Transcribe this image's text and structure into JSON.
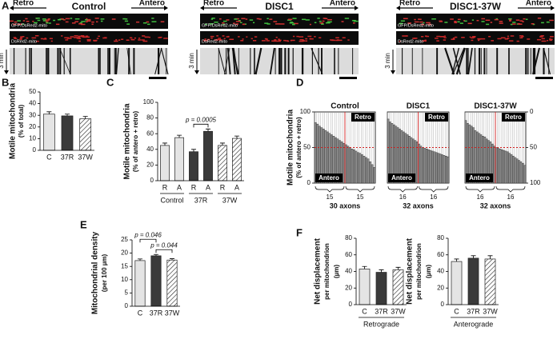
{
  "panel_labels": [
    "A",
    "B",
    "C",
    "D",
    "E",
    "F"
  ],
  "panel_a": {
    "arrows": [
      "Retro",
      "Antero"
    ],
    "conditions": [
      "Control",
      "DISC1",
      "DISC1-37W"
    ],
    "strip_labels": [
      "GFP/DsRed2-mito",
      "DsRed2-mito"
    ],
    "time": "3 min"
  },
  "chart_data": [
    {
      "type": "bar",
      "ylabel": [
        "Motile mitochondria",
        "(% of total)"
      ],
      "categories": [
        "C",
        "37R",
        "37W"
      ],
      "values": [
        31,
        29.5,
        27
      ],
      "errors": [
        2,
        1.5,
        2
      ],
      "bar_colors": [
        "#e4e4e4",
        "#3a3a3a",
        "#ffffff"
      ],
      "hatched": [
        false,
        false,
        true
      ],
      "ylim": [
        0,
        50
      ],
      "yticks": [
        0,
        10,
        20,
        30,
        40,
        50
      ]
    },
    {
      "type": "bar",
      "ylabel": [
        "Motile mitochondria",
        "(% of antero + retro)"
      ],
      "categories": [
        "R",
        "A",
        "R",
        "A",
        "R",
        "A"
      ],
      "group_labels": [
        "Control",
        "37R",
        "37W"
      ],
      "values": [
        45,
        55,
        37,
        63,
        45,
        54
      ],
      "errors": [
        3,
        3,
        3,
        3,
        3,
        3
      ],
      "bar_colors": [
        "#e4e4e4",
        "#e4e4e4",
        "#3a3a3a",
        "#3a3a3a",
        "#ffffff",
        "#ffffff"
      ],
      "hatched": [
        false,
        false,
        false,
        false,
        true,
        true
      ],
      "annotations": [
        "p = 0.0005"
      ],
      "ylim": [
        0,
        100
      ],
      "yticks": [
        0,
        20,
        40,
        60,
        80,
        100
      ]
    },
    {
      "type": "bar",
      "title": "Control",
      "ylabel": [
        "Motile mitochondria",
        "(% of antero + retro)"
      ],
      "values": [
        85,
        83,
        80,
        78,
        76,
        74,
        72,
        70,
        68,
        66,
        64,
        62,
        60,
        58,
        56,
        54,
        52,
        50,
        48,
        47,
        45,
        43,
        42,
        40,
        38,
        36,
        34,
        30,
        26,
        22
      ],
      "categories": [
        null,
        null,
        null,
        null,
        null,
        null,
        null,
        null,
        null,
        null,
        null,
        null,
        null,
        null,
        null,
        null,
        null,
        null,
        null,
        null,
        null,
        null,
        null,
        null,
        null,
        null,
        null,
        null,
        null,
        null
      ],
      "color": "#8c8c8c",
      "x_group_counts": [
        15,
        15
      ],
      "xlabel": "30 axons",
      "annotations": [
        "Retro",
        "Antero"
      ],
      "reference_line": 50,
      "ylim": [
        0,
        100
      ],
      "yticks": [
        0,
        50,
        100
      ]
    },
    {
      "type": "bar",
      "title": "DISC1",
      "values": [
        90,
        86,
        84,
        82,
        80,
        78,
        76,
        74,
        72,
        70,
        68,
        66,
        64,
        62,
        60,
        58,
        55,
        52,
        50,
        49,
        48,
        47,
        46,
        45,
        44,
        43,
        42,
        41,
        40,
        39,
        38,
        37
      ],
      "categories": [
        null,
        null,
        null,
        null,
        null,
        null,
        null,
        null,
        null,
        null,
        null,
        null,
        null,
        null,
        null,
        null,
        null,
        null,
        null,
        null,
        null,
        null,
        null,
        null,
        null,
        null,
        null,
        null,
        null,
        null,
        null,
        null
      ],
      "color": "#8c8c8c",
      "x_group_counts": [
        16,
        16
      ],
      "xlabel": "32 axons",
      "annotations": [
        "Retro",
        "Antero"
      ],
      "reference_line": 50,
      "ylim": [
        0,
        100
      ]
    },
    {
      "type": "bar",
      "title": "DISC1-37W",
      "values": [
        88,
        84,
        82,
        80,
        78,
        74,
        72,
        70,
        68,
        66,
        65,
        62,
        60,
        58,
        55,
        52,
        50,
        49,
        48,
        47,
        46,
        45,
        44,
        42,
        40,
        38,
        36,
        34,
        32,
        30,
        28,
        25
      ],
      "categories": [
        null,
        null,
        null,
        null,
        null,
        null,
        null,
        null,
        null,
        null,
        null,
        null,
        null,
        null,
        null,
        null,
        null,
        null,
        null,
        null,
        null,
        null,
        null,
        null,
        null,
        null,
        null,
        null,
        null,
        null,
        null,
        null
      ],
      "color": "#8c8c8c",
      "x_group_counts": [
        16,
        16
      ],
      "xlabel": "32 axons",
      "annotations": [
        "Retro",
        "Antero"
      ],
      "reference_line": 50,
      "ylim": [
        0,
        100
      ],
      "y2lim": [
        100,
        0
      ],
      "y2ticks": [
        0,
        50,
        100
      ]
    },
    {
      "type": "bar",
      "ylabel": [
        "Mitochondrial density",
        "(per 100 µm)"
      ],
      "categories": [
        "C",
        "37R",
        "37W"
      ],
      "values": [
        17.2,
        19,
        17.4
      ],
      "errors": [
        0.6,
        0.5,
        0.5
      ],
      "bar_colors": [
        "#e4e4e4",
        "#3a3a3a",
        "#ffffff"
      ],
      "hatched": [
        false,
        false,
        true
      ],
      "annotations": [
        "p = 0.046",
        "p = 0.044"
      ],
      "ylim": [
        0,
        25
      ],
      "yticks": [
        0,
        5,
        10,
        15,
        20,
        25
      ]
    },
    {
      "type": "bar",
      "ylabel": [
        "Net displacement",
        "per mitochondrion",
        "(µm)"
      ],
      "categories": [
        "C",
        "37R",
        "37W"
      ],
      "group_labels": [
        "Retrograde"
      ],
      "values": [
        43,
        39,
        42
      ],
      "errors": [
        3,
        3,
        3
      ],
      "bar_colors": [
        "#e4e4e4",
        "#3a3a3a",
        "#ffffff"
      ],
      "hatched": [
        false,
        false,
        true
      ],
      "ylim": [
        0,
        80
      ],
      "yticks": [
        0,
        20,
        40,
        60,
        80
      ]
    },
    {
      "type": "bar",
      "ylabel": [
        "Net displacement",
        "per mitochondrion",
        "(µm)"
      ],
      "categories": [
        "C",
        "37R",
        "37W"
      ],
      "group_labels": [
        "Anterograde"
      ],
      "values": [
        52,
        56,
        55
      ],
      "errors": [
        3,
        3,
        4
      ],
      "bar_colors": [
        "#e4e4e4",
        "#3a3a3a",
        "#ffffff"
      ],
      "hatched": [
        false,
        false,
        true
      ],
      "ylim": [
        0,
        80
      ],
      "yticks": [
        0,
        20,
        40,
        60,
        80
      ]
    }
  ]
}
